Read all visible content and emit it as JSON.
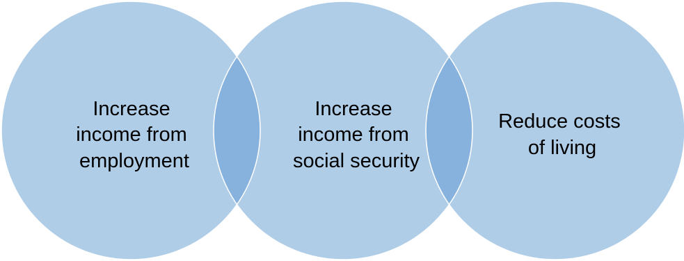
{
  "diagram": {
    "type": "overlapping-circles",
    "circle_color": "#b0cde8",
    "overlap_color": "#86b2dd",
    "items": [
      {
        "lines": [
          "Increase",
          "income from",
          "employment"
        ]
      },
      {
        "lines": [
          "Increase",
          "income from",
          "social security"
        ]
      },
      {
        "lines": [
          "Reduce costs",
          "of living"
        ]
      }
    ]
  }
}
